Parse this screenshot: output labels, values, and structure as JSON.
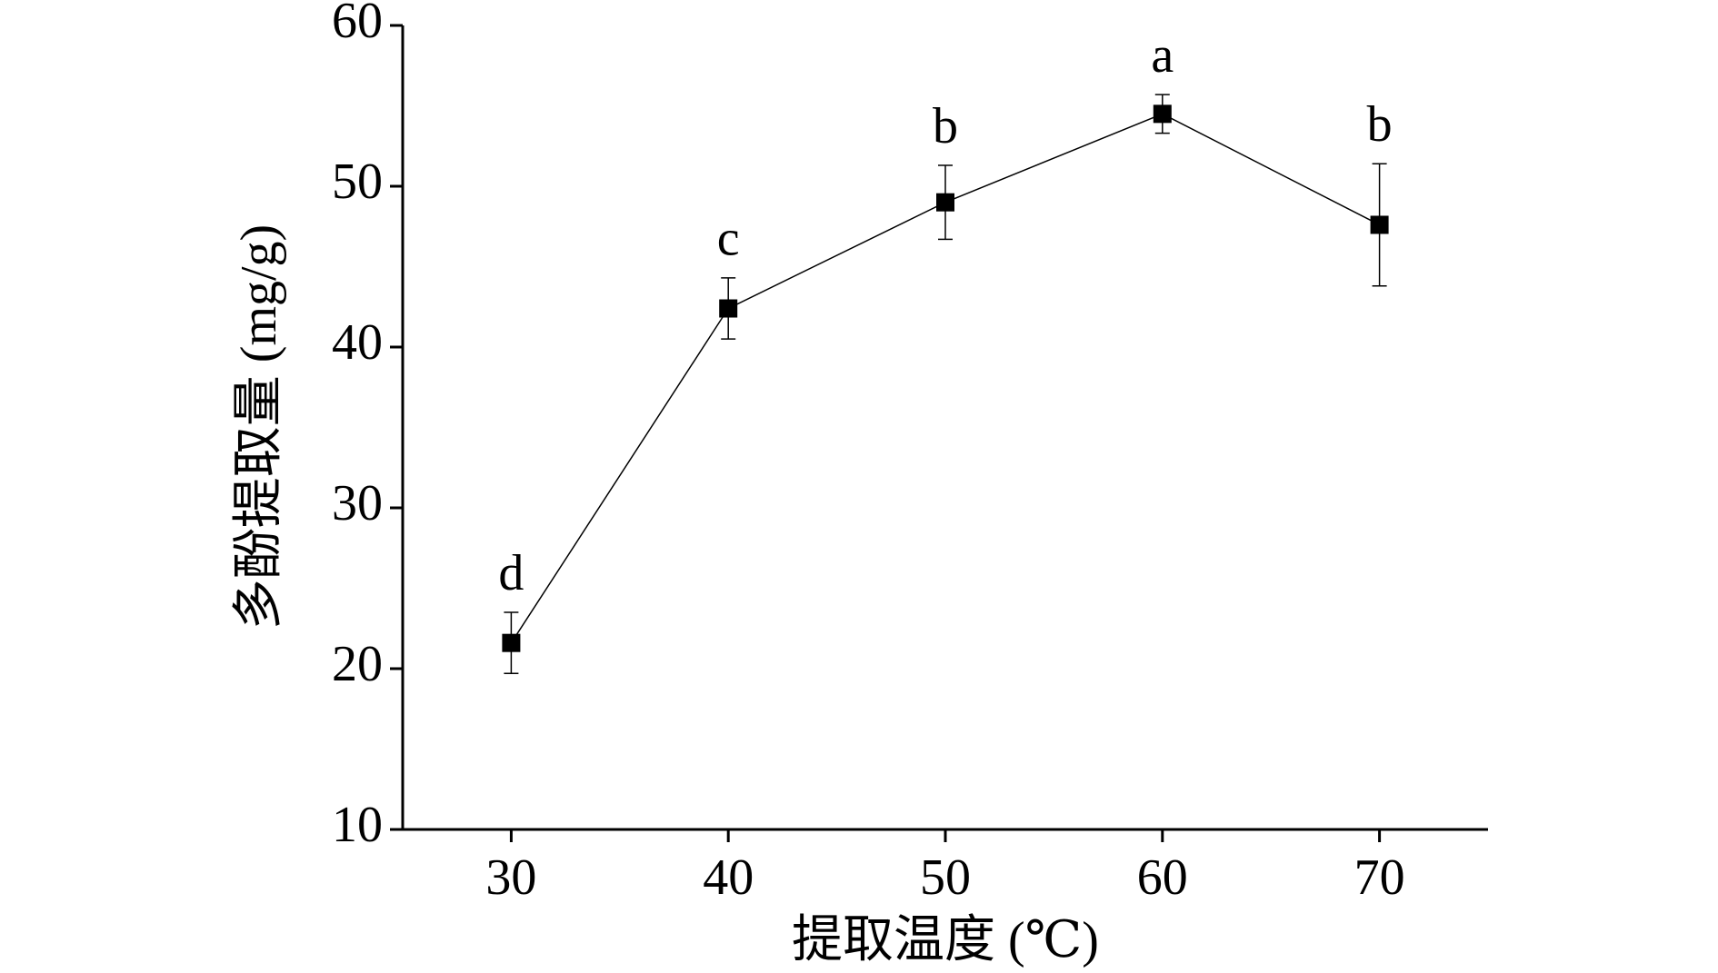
{
  "chart_data": {
    "type": "line",
    "x_label": "提取温度 (℃)",
    "y_label": "多酚提取量 (mg/g)",
    "x": [
      30,
      40,
      50,
      60,
      70
    ],
    "series": [
      {
        "color": "#000000",
        "values": [
          21.6,
          42.4,
          49.0,
          54.5,
          47.6
        ],
        "errors": [
          1.9,
          1.9,
          2.3,
          1.2,
          3.8
        ],
        "annotations": [
          "d",
          "c",
          "b",
          "a",
          "b"
        ]
      }
    ],
    "xlim": [
      25,
      75
    ],
    "xticks": [
      30,
      40,
      50,
      60,
      70
    ],
    "ylim": [
      10,
      60
    ],
    "yticks": [
      10,
      20,
      30,
      40,
      50,
      60
    ],
    "grid": false
  }
}
